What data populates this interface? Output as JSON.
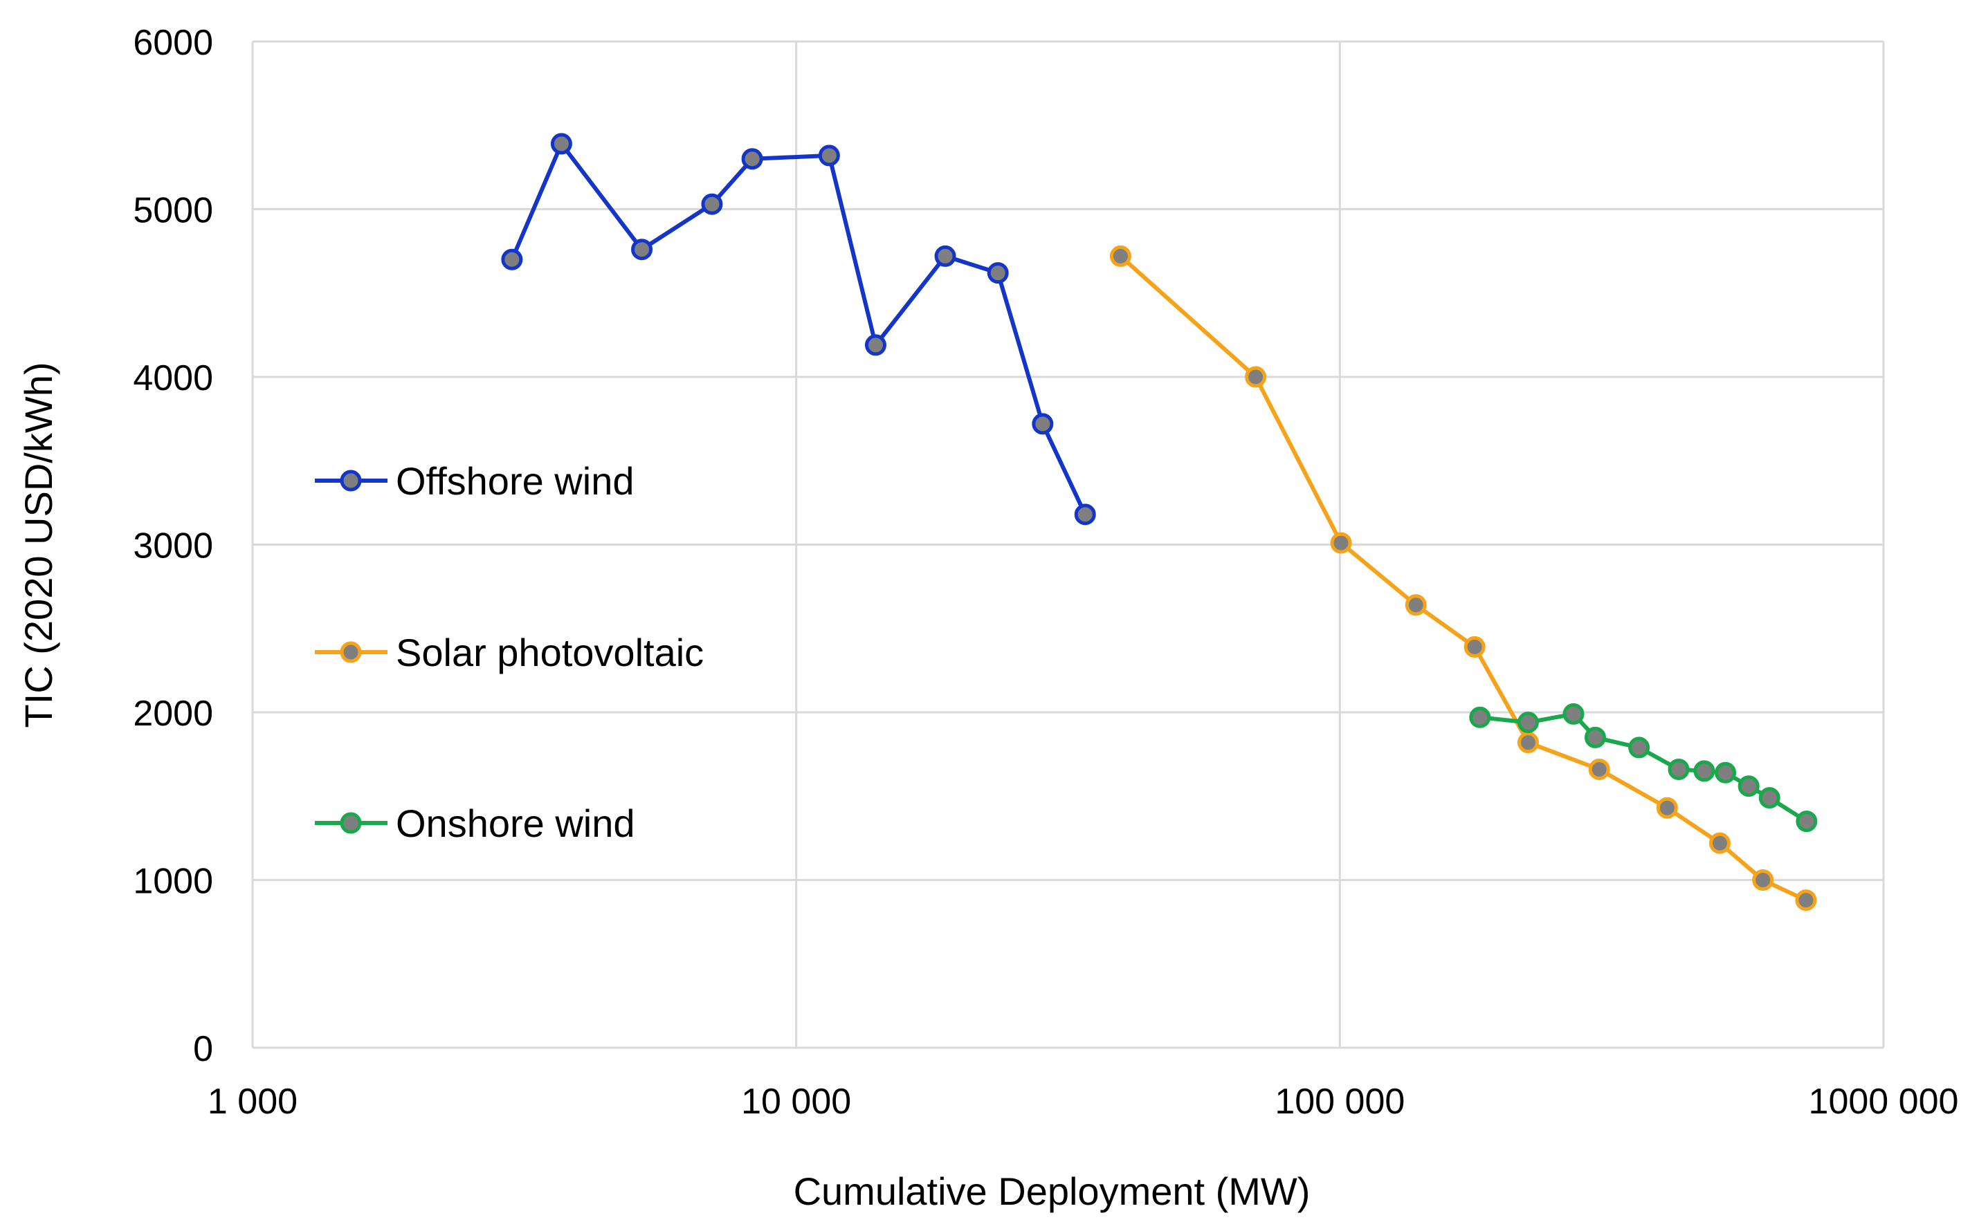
{
  "chart_data": {
    "type": "line",
    "title": "",
    "xlabel": "Cumulative Deployment (MW)",
    "ylabel": "TIC (2020 USD/kWh)",
    "xscale": "log",
    "xlim": [
      1000,
      1000000
    ],
    "ylim": [
      0,
      6000
    ],
    "grid": true,
    "legend_position": "left-middle",
    "x_tick_values": [
      1000,
      10000,
      100000,
      1000000
    ],
    "x_tick_labels": [
      "1 000",
      "10 000",
      "100 000",
      "1000 000"
    ],
    "y_tick_values": [
      0,
      1000,
      2000,
      3000,
      4000,
      5000,
      6000
    ],
    "y_tick_labels": [
      "0",
      "1000",
      "2000",
      "3000",
      "4000",
      "5000",
      "6000"
    ],
    "marker_fill": "#7f7f7f",
    "series": [
      {
        "name": "Offshore wind",
        "color": "#1436c8",
        "x": [
          3000,
          3700,
          5200,
          7000,
          8300,
          11500,
          14000,
          18800,
          23500,
          28400,
          34000
        ],
        "y": [
          4700,
          5390,
          4760,
          5030,
          5300,
          5320,
          4190,
          4720,
          4620,
          3720,
          3180
        ]
      },
      {
        "name": "Solar photovoltaic",
        "color": "#f5a31a",
        "x": [
          39500,
          70000,
          100500,
          138000,
          177000,
          222000,
          300000,
          400000,
          500000,
          600000,
          720000
        ],
        "y": [
          4720,
          4000,
          3010,
          2640,
          2390,
          1820,
          1660,
          1430,
          1220,
          1000,
          880
        ]
      },
      {
        "name": "Onshore wind",
        "color": "#1aa84c",
        "x": [
          181000,
          222000,
          269000,
          295000,
          355000,
          420000,
          468000,
          512000,
          565000,
          617000,
          722000
        ],
        "y": [
          1970,
          1940,
          1990,
          1850,
          1790,
          1660,
          1650,
          1640,
          1560,
          1490,
          1350
        ]
      }
    ]
  }
}
